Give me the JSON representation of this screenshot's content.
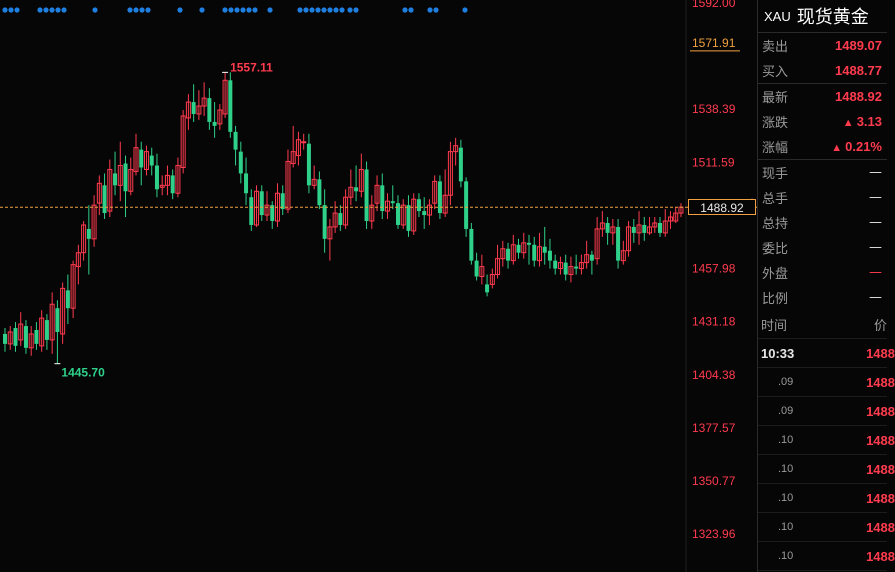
{
  "chart_data": {
    "type": "candlestick",
    "price_axis_ticks": [
      "1592.00",
      "1571.91",
      "1538.39",
      "1511.59",
      "1488.92",
      "1457.98",
      "1431.18",
      "1404.38",
      "1377.57",
      "1350.77",
      "1323.96"
    ],
    "ylim": [
      1317.0,
      1592.0
    ],
    "annotations": {
      "high": "1557.11",
      "low": "1445.70"
    },
    "last_price": "1488.92",
    "highlighted_tick": "1571.91",
    "candles": [
      [
        1425,
        1420,
        1428,
        1416
      ],
      [
        1420,
        1426,
        1429,
        1417
      ],
      [
        1428,
        1419,
        1431,
        1416
      ],
      [
        1422,
        1430,
        1436,
        1419
      ],
      [
        1429,
        1418,
        1432,
        1415
      ],
      [
        1418,
        1425,
        1429,
        1414
      ],
      [
        1427,
        1420,
        1431,
        1417
      ],
      [
        1419,
        1433,
        1437,
        1416
      ],
      [
        1432,
        1422,
        1435,
        1417
      ],
      [
        1422,
        1440,
        1446,
        1415
      ],
      [
        1438,
        1426,
        1442,
        1410
      ],
      [
        1425,
        1448,
        1451,
        1420
      ],
      [
        1447,
        1438,
        1455,
        1430
      ],
      [
        1438,
        1460,
        1462,
        1433
      ],
      [
        1459,
        1466,
        1470,
        1450
      ],
      [
        1466,
        1480,
        1482,
        1462
      ],
      [
        1478,
        1473,
        1490,
        1455
      ],
      [
        1473,
        1490,
        1495,
        1469
      ],
      [
        1491,
        1501,
        1505,
        1485
      ],
      [
        1500,
        1486,
        1506,
        1483
      ],
      [
        1487,
        1508,
        1513,
        1484
      ],
      [
        1506,
        1500,
        1517,
        1495
      ],
      [
        1500,
        1510,
        1522,
        1492
      ],
      [
        1511,
        1497,
        1515,
        1484
      ],
      [
        1497,
        1508,
        1514,
        1495
      ],
      [
        1507,
        1519,
        1526,
        1505
      ],
      [
        1518,
        1509,
        1522,
        1500
      ],
      [
        1508,
        1517,
        1520,
        1505
      ],
      [
        1515,
        1510,
        1519,
        1505
      ],
      [
        1510,
        1498,
        1516,
        1494
      ],
      [
        1499,
        1500,
        1505,
        1495
      ],
      [
        1500,
        1505,
        1510,
        1495
      ],
      [
        1505,
        1496,
        1508,
        1493
      ],
      [
        1496,
        1510,
        1514,
        1494
      ],
      [
        1509,
        1535,
        1538,
        1506
      ],
      [
        1534,
        1542,
        1546,
        1528
      ],
      [
        1542,
        1536,
        1551,
        1532
      ],
      [
        1536,
        1540,
        1548,
        1533
      ],
      [
        1540,
        1544,
        1552,
        1535
      ],
      [
        1544,
        1532,
        1549,
        1528
      ],
      [
        1532,
        1530,
        1542,
        1524
      ],
      [
        1531,
        1538,
        1541,
        1528
      ],
      [
        1536,
        1553,
        1557,
        1534
      ],
      [
        1553,
        1527,
        1557,
        1524
      ],
      [
        1527,
        1518,
        1530,
        1510
      ],
      [
        1517,
        1506,
        1522,
        1501
      ],
      [
        1506,
        1496,
        1514,
        1490
      ],
      [
        1494,
        1480,
        1498,
        1477
      ],
      [
        1480,
        1497,
        1500,
        1479
      ],
      [
        1497,
        1485,
        1500,
        1482
      ],
      [
        1485,
        1490,
        1497,
        1482
      ],
      [
        1490,
        1482,
        1492,
        1478
      ],
      [
        1482,
        1496,
        1501,
        1479
      ],
      [
        1496,
        1488,
        1500,
        1485
      ],
      [
        1488,
        1512,
        1518,
        1486
      ],
      [
        1511,
        1517,
        1530,
        1509
      ],
      [
        1515,
        1523,
        1527,
        1510
      ],
      [
        1522,
        1522,
        1526,
        1518
      ],
      [
        1521,
        1500,
        1526,
        1496
      ],
      [
        1500,
        1503,
        1510,
        1498
      ],
      [
        1503,
        1490,
        1507,
        1488
      ],
      [
        1490,
        1473,
        1498,
        1466
      ],
      [
        1473,
        1479,
        1483,
        1462
      ],
      [
        1479,
        1486,
        1492,
        1476
      ],
      [
        1486,
        1480,
        1490,
        1477
      ],
      [
        1480,
        1494,
        1498,
        1478
      ],
      [
        1494,
        1499,
        1508,
        1490
      ],
      [
        1499,
        1497,
        1510,
        1492
      ],
      [
        1497,
        1508,
        1516,
        1494
      ],
      [
        1508,
        1482,
        1512,
        1478
      ],
      [
        1482,
        1490,
        1495,
        1478
      ],
      [
        1491,
        1500,
        1505,
        1487
      ],
      [
        1500,
        1487,
        1506,
        1483
      ],
      [
        1487,
        1492,
        1496,
        1483
      ],
      [
        1492,
        1491,
        1500,
        1488
      ],
      [
        1491,
        1480,
        1495,
        1478
      ],
      [
        1480,
        1490,
        1493,
        1478
      ],
      [
        1490,
        1477,
        1495,
        1474
      ],
      [
        1477,
        1493,
        1496,
        1475
      ],
      [
        1493,
        1487,
        1496,
        1484
      ],
      [
        1487,
        1485,
        1494,
        1478
      ],
      [
        1485,
        1490,
        1493,
        1480
      ],
      [
        1491,
        1502,
        1505,
        1488
      ],
      [
        1502,
        1486,
        1505,
        1483
      ],
      [
        1486,
        1495,
        1508,
        1484
      ],
      [
        1495,
        1517,
        1522,
        1490
      ],
      [
        1517,
        1520,
        1524,
        1510
      ],
      [
        1519,
        1502,
        1523,
        1499
      ],
      [
        1502,
        1478,
        1504,
        1474
      ],
      [
        1478,
        1462,
        1481,
        1460
      ],
      [
        1462,
        1454,
        1466,
        1452
      ],
      [
        1454,
        1459,
        1465,
        1450
      ],
      [
        1450,
        1446,
        1455,
        1444
      ],
      [
        1450,
        1455,
        1458,
        1448
      ],
      [
        1455,
        1463,
        1470,
        1453
      ],
      [
        1463,
        1468,
        1472,
        1459
      ],
      [
        1468,
        1462,
        1471,
        1458
      ],
      [
        1462,
        1470,
        1475,
        1460
      ],
      [
        1470,
        1466,
        1473,
        1463
      ],
      [
        1466,
        1471,
        1476,
        1463
      ],
      [
        1471,
        1470,
        1475,
        1460
      ],
      [
        1470,
        1462,
        1474,
        1459
      ],
      [
        1462,
        1469,
        1476,
        1459
      ],
      [
        1469,
        1466,
        1479,
        1460
      ],
      [
        1467,
        1462,
        1473,
        1458
      ],
      [
        1462,
        1458,
        1465,
        1455
      ],
      [
        1458,
        1461,
        1464,
        1455
      ],
      [
        1461,
        1455,
        1465,
        1452
      ],
      [
        1455,
        1459,
        1464,
        1451
      ],
      [
        1459,
        1458,
        1465,
        1455
      ],
      [
        1458,
        1461,
        1465,
        1455
      ],
      [
        1461,
        1465,
        1472,
        1458
      ],
      [
        1465,
        1462,
        1467,
        1455
      ],
      [
        1463,
        1478,
        1484,
        1460
      ],
      [
        1478,
        1481,
        1487,
        1474
      ],
      [
        1481,
        1476,
        1484,
        1470
      ],
      [
        1476,
        1479,
        1483,
        1470
      ],
      [
        1479,
        1462,
        1483,
        1458
      ],
      [
        1462,
        1467,
        1472,
        1460
      ],
      [
        1467,
        1479,
        1482,
        1464
      ],
      [
        1479,
        1476,
        1483,
        1471
      ],
      [
        1476,
        1480,
        1487,
        1470
      ],
      [
        1480,
        1476,
        1484,
        1472
      ],
      [
        1476,
        1479,
        1484,
        1475
      ],
      [
        1479,
        1481,
        1484,
        1476
      ],
      [
        1481,
        1476,
        1484,
        1474
      ],
      [
        1476,
        1482,
        1488,
        1474
      ],
      [
        1482,
        1484,
        1487,
        1478
      ],
      [
        1482,
        1486,
        1489,
        1481
      ],
      [
        1486,
        1489,
        1491,
        1484
      ]
    ]
  },
  "top_marker_count": 37,
  "panel": {
    "code": "XAU",
    "name": "现货黄金",
    "rows": [
      {
        "label": "卖出",
        "value": "1489.07"
      },
      {
        "label": "买入",
        "value": "1488.77"
      },
      {
        "label": "最新",
        "value": "1488.92"
      },
      {
        "label": "涨跌",
        "value": "3.13",
        "arrow": "▲"
      },
      {
        "label": "涨幅",
        "value": "0.21%",
        "arrow": "▲"
      },
      {
        "label": "现手",
        "value": "—"
      },
      {
        "label": "总手",
        "value": "—"
      },
      {
        "label": "总持",
        "value": "—"
      },
      {
        "label": "委比",
        "value": "—"
      },
      {
        "label": "外盘",
        "value": "—"
      },
      {
        "label": "比例",
        "value": "—"
      }
    ],
    "ticks_header": {
      "time": "时间",
      "price": "价"
    },
    "ticks": [
      {
        "time": "10:33",
        "price": "1488"
      },
      {
        "time": ".09",
        "price": "1488"
      },
      {
        "time": ".09",
        "price": "1488"
      },
      {
        "time": ".10",
        "price": "1488"
      },
      {
        "time": ".10",
        "price": "1488"
      },
      {
        "time": ".10",
        "price": "1488"
      },
      {
        "time": ".10",
        "price": "1488"
      },
      {
        "time": ".10",
        "price": "1488"
      }
    ]
  },
  "colors": {
    "up": "#ff3b4e",
    "down": "#2fd08a",
    "axis": "#ff3b4e",
    "dots": "#1e7fe0",
    "last_line": "#f0a040",
    "highlight_tick": "#f0a040"
  }
}
